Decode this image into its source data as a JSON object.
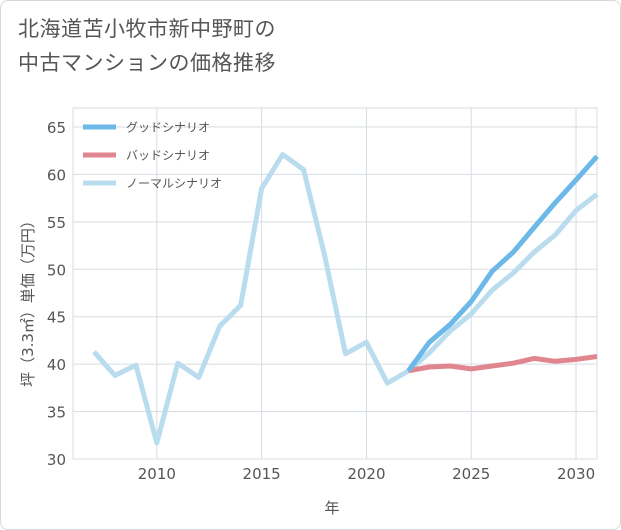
{
  "title_lines": [
    "北海道苫小牧市新中野町の",
    "中古マンションの価格推移"
  ],
  "chart_data": {
    "type": "line",
    "title": "北海道苫小牧市新中野町の中古マンションの価格推移",
    "xlabel": "年",
    "ylabel": "坪（3.3㎡）単価（万円）",
    "xlim": [
      2006,
      2031
    ],
    "ylim": [
      30,
      67
    ],
    "xticks": [
      2010,
      2015,
      2020,
      2025,
      2030
    ],
    "yticks": [
      30,
      35,
      40,
      45,
      50,
      55,
      60,
      65
    ],
    "grid": true,
    "legend_position": "top-left",
    "series": [
      {
        "name": "グッドシナリオ",
        "color": "#6cb8e8",
        "x": [
          2022,
          2023,
          2024,
          2025,
          2026,
          2027,
          2028,
          2029,
          2030,
          2031
        ],
        "y": [
          39.3,
          42.3,
          44.2,
          46.6,
          49.8,
          51.8,
          54.4,
          57.0,
          59.4,
          61.9
        ]
      },
      {
        "name": "バッドシナリオ",
        "color": "#e0868e",
        "x": [
          2022,
          2023,
          2024,
          2025,
          2026,
          2027,
          2028,
          2029,
          2030,
          2031
        ],
        "y": [
          39.3,
          39.7,
          39.8,
          39.5,
          39.8,
          40.1,
          40.6,
          40.3,
          40.5,
          40.8
        ]
      },
      {
        "name": "ノーマルシナリオ",
        "color": "#b9dcee",
        "x": [
          2007,
          2008,
          2009,
          2010,
          2011,
          2012,
          2013,
          2014,
          2015,
          2016,
          2017,
          2018,
          2019,
          2020,
          2021,
          2022,
          2023,
          2024,
          2025,
          2026,
          2027,
          2028,
          2029,
          2030,
          2031
        ],
        "y": [
          41.3,
          38.8,
          39.9,
          31.7,
          40.1,
          38.6,
          44.0,
          46.2,
          58.5,
          62.1,
          60.5,
          51.5,
          41.1,
          42.3,
          38.0,
          39.3,
          41.2,
          43.5,
          45.3,
          47.8,
          49.6,
          51.8,
          53.6,
          56.2,
          57.9
        ]
      }
    ]
  }
}
